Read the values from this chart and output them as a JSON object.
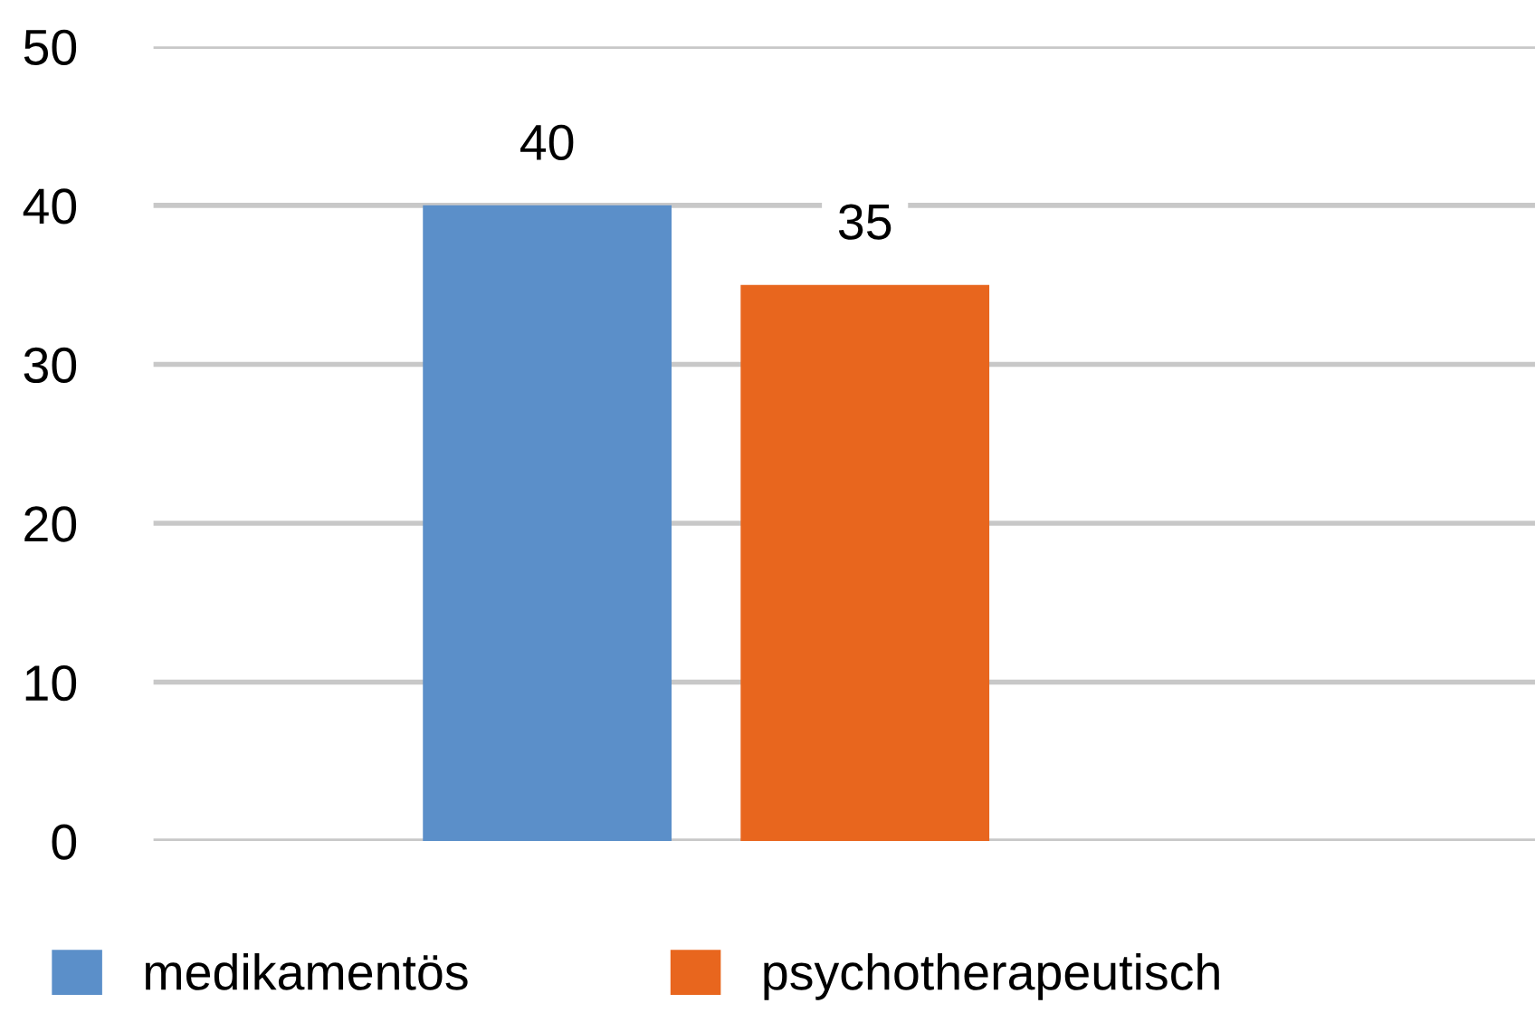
{
  "chart_data": {
    "type": "bar",
    "categories": [
      null
    ],
    "series": [
      {
        "name": "medikamentös",
        "color": "#5b8fc9",
        "values": [
          40
        ]
      },
      {
        "name": "psychotherapeutisch",
        "color": "#e8661e",
        "values": [
          35
        ]
      }
    ],
    "ylim": [
      0,
      50
    ],
    "yticks": [
      0,
      10,
      20,
      30,
      40,
      50
    ],
    "grid": "y",
    "legend": "bottom",
    "data_labels": true
  }
}
